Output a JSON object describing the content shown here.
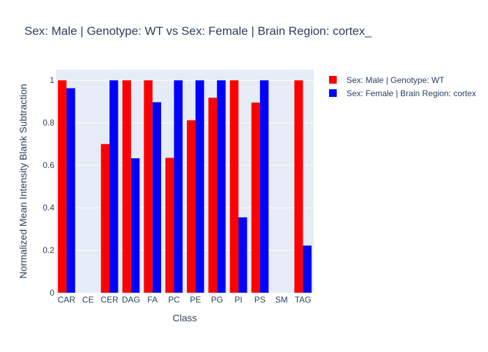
{
  "chart_data": {
    "type": "bar",
    "title": "Sex: Male | Genotype: WT vs Sex: Female | Brain Region: cortex_",
    "xlabel": "Class",
    "ylabel": "Normalized Mean Intensity Blank Subtraction",
    "categories": [
      "CAR",
      "CE",
      "CER",
      "DAG",
      "FA",
      "PC",
      "PE",
      "PG",
      "PI",
      "PS",
      "SM",
      "TAG"
    ],
    "ylim": [
      0,
      1.05
    ],
    "yticks": [
      0,
      0.2,
      0.4,
      0.6,
      0.8,
      1
    ],
    "ytick_labels": [
      "0",
      "0.2",
      "0.4",
      "0.6",
      "0.8",
      "1"
    ],
    "grid": true,
    "legend_position": "top-right",
    "series": [
      {
        "name": "Sex: Male | Genotype: WT",
        "color": "#ff0000",
        "values": [
          1.0,
          0,
          0.7,
          1.0,
          1.0,
          0.635,
          0.812,
          0.918,
          1.0,
          0.895,
          0,
          1.0
        ]
      },
      {
        "name": "Sex: Female | Brain Region: cortex",
        "color": "#0000ff",
        "values": [
          0.963,
          0,
          1.0,
          0.633,
          0.897,
          1.0,
          1.0,
          1.0,
          0.355,
          1.0,
          0,
          0.222
        ]
      }
    ]
  }
}
